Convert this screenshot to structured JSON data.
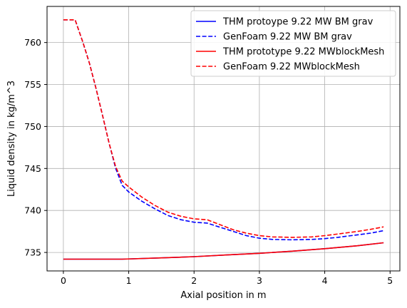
{
  "chart_data": {
    "type": "line",
    "title": "",
    "xlabel": "Axial position in m",
    "ylabel": "Liquid density in kg/m^3",
    "xlim": [
      -0.25,
      5.15
    ],
    "ylim": [
      732.8,
      764.3
    ],
    "xticks": [
      0,
      1,
      2,
      3,
      4,
      5
    ],
    "yticks": [
      735,
      740,
      745,
      750,
      755,
      760
    ],
    "grid": true,
    "legend_position": "top-right",
    "series": [
      {
        "name": "THM protoype 9.22 MW BM grav",
        "color": "#0000ff",
        "style": "solid",
        "x": [
          0,
          0.9,
          1.5,
          2.0,
          2.5,
          3.0,
          3.5,
          4.0,
          4.5,
          4.9
        ],
        "y": [
          734.2,
          734.2,
          734.35,
          734.5,
          734.7,
          734.9,
          735.15,
          735.45,
          735.8,
          736.15
        ]
      },
      {
        "name": "GenFoam 9.22 MW BM grav",
        "color": "#0000ff",
        "style": "dashed",
        "x": [
          0,
          0.18,
          0.3,
          0.4,
          0.5,
          0.6,
          0.7,
          0.8,
          0.9,
          1.0,
          1.2,
          1.4,
          1.6,
          1.8,
          2.0,
          2.2,
          2.4,
          2.6,
          2.8,
          3.0,
          3.2,
          3.5,
          3.8,
          4.0,
          4.2,
          4.5,
          4.7,
          4.9
        ],
        "y": [
          762.7,
          762.7,
          760.0,
          757.5,
          754.5,
          751.3,
          748.0,
          745.0,
          743.0,
          742.2,
          741.1,
          740.2,
          739.4,
          738.9,
          738.6,
          738.5,
          738.0,
          737.5,
          737.0,
          736.7,
          736.55,
          736.5,
          736.55,
          736.65,
          736.8,
          737.1,
          737.3,
          737.6
        ]
      },
      {
        "name": "THM prototype 9.22 MWblockMesh",
        "color": "#ff0000",
        "style": "solid",
        "x": [
          0,
          0.9,
          1.5,
          2.0,
          2.5,
          3.0,
          3.5,
          4.0,
          4.5,
          4.9
        ],
        "y": [
          734.2,
          734.2,
          734.35,
          734.5,
          734.7,
          734.9,
          735.15,
          735.45,
          735.8,
          736.15
        ]
      },
      {
        "name": "GenFoam 9.22 MWblockMesh",
        "color": "#ff0000",
        "style": "dashed",
        "x": [
          0,
          0.18,
          0.3,
          0.4,
          0.5,
          0.6,
          0.7,
          0.8,
          0.9,
          1.0,
          1.2,
          1.4,
          1.6,
          1.8,
          2.0,
          2.2,
          2.4,
          2.6,
          2.8,
          3.0,
          3.2,
          3.5,
          3.8,
          4.0,
          4.2,
          4.5,
          4.7,
          4.9
        ],
        "y": [
          762.7,
          762.7,
          760.0,
          757.5,
          754.5,
          751.3,
          748.0,
          745.2,
          743.5,
          742.8,
          741.6,
          740.6,
          739.8,
          739.3,
          739.0,
          738.9,
          738.3,
          737.7,
          737.3,
          737.0,
          736.85,
          736.8,
          736.85,
          737.0,
          737.2,
          737.5,
          737.75,
          738.05
        ]
      }
    ]
  }
}
